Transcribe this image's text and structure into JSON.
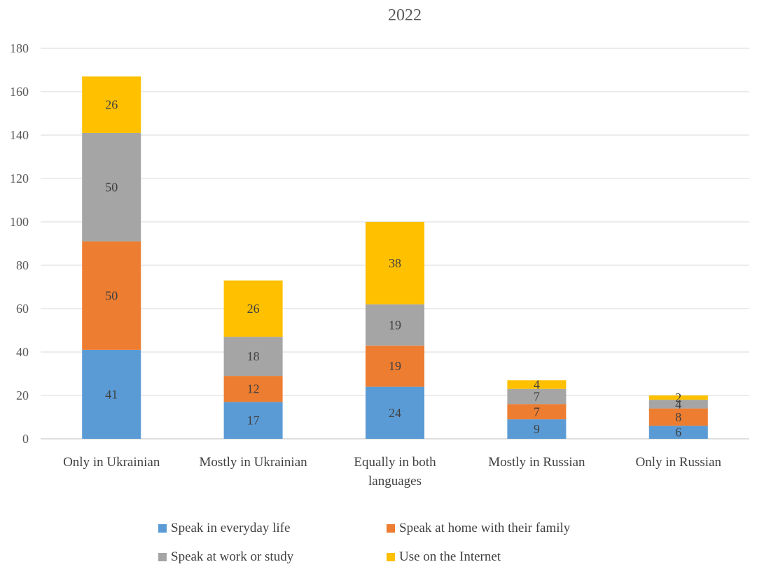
{
  "chart_data": {
    "type": "bar",
    "stacked": true,
    "title": "2022",
    "categories": [
      "Only in Ukrainian",
      "Mostly in Ukrainian",
      "Equally in both languages",
      "Mostly in Russian",
      "Only in Russian"
    ],
    "series": [
      {
        "name": "Speak in everyday life",
        "color": "#5B9BD5",
        "values": [
          41,
          17,
          24,
          9,
          6
        ]
      },
      {
        "name": "Speak at home with their family",
        "color": "#ED7D31",
        "values": [
          50,
          12,
          19,
          7,
          8
        ]
      },
      {
        "name": "Speak at work or study",
        "color": "#A5A5A5",
        "values": [
          50,
          18,
          19,
          7,
          4
        ]
      },
      {
        "name": "Use on the Internet",
        "color": "#FFC000",
        "values": [
          26,
          26,
          38,
          4,
          2
        ]
      }
    ],
    "ylim": [
      0,
      180
    ],
    "yticks": [
      0,
      20,
      40,
      60,
      80,
      100,
      120,
      140,
      160,
      180
    ],
    "grid": true,
    "legend_position": "bottom",
    "data_labels": true
  }
}
